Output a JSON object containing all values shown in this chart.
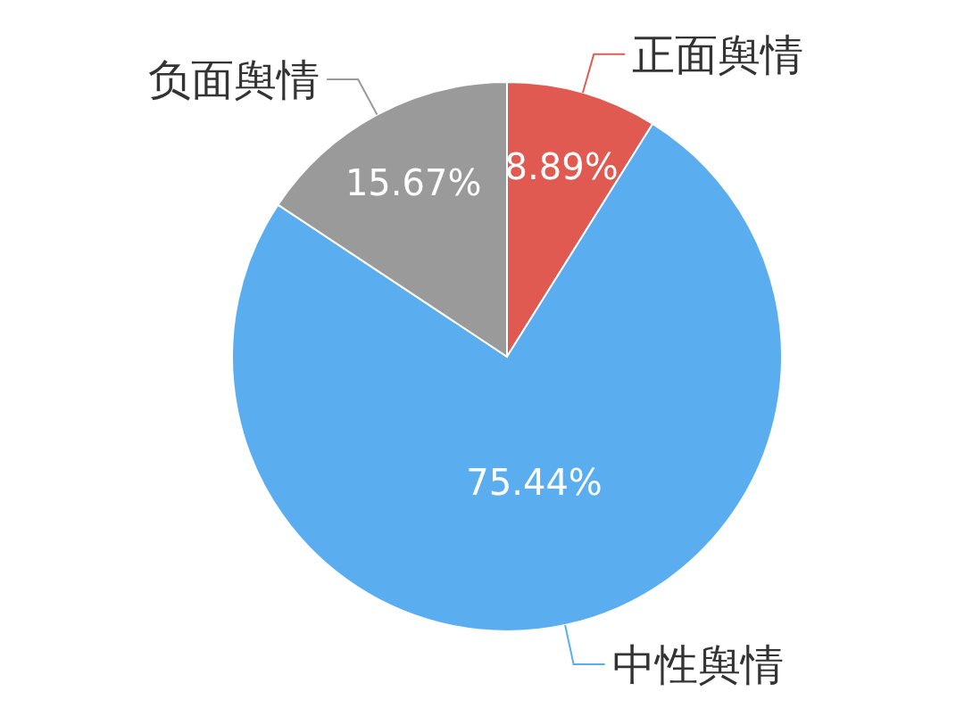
{
  "chart_data": {
    "type": "pie",
    "categories": [
      "正面舆情",
      "中性舆情",
      "负面舆情"
    ],
    "values": [
      8.89,
      75.44,
      15.67
    ],
    "colors": [
      "#e05a52",
      "#5aaef0",
      "#9a9a9a"
    ],
    "value_labels": [
      "8.89%",
      "75.44%",
      "15.67%"
    ]
  }
}
